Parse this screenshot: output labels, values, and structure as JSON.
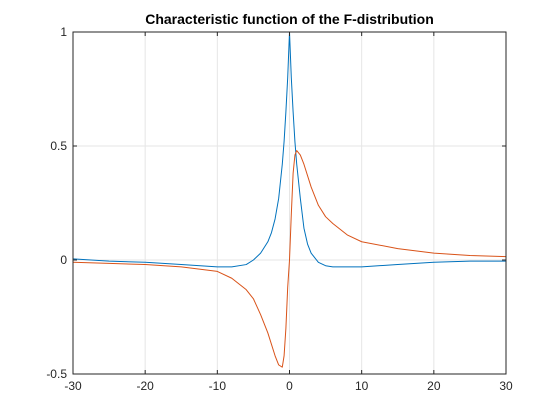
{
  "chart_data": {
    "type": "line",
    "title": "Characteristic function of the F-distribution",
    "xlabel": "",
    "ylabel": "",
    "xlim": [
      -30,
      30
    ],
    "ylim": [
      -0.5,
      1
    ],
    "xticks": [
      -30,
      -20,
      -10,
      0,
      10,
      20,
      30
    ],
    "xtick_labels": [
      "-30",
      "-20",
      "-10",
      "0",
      "10",
      "20",
      "30"
    ],
    "yticks": [
      -0.5,
      0,
      0.5,
      1
    ],
    "ytick_labels": [
      "-0.5",
      "0",
      "0.5",
      "1"
    ],
    "grid": true,
    "legend": "none",
    "series": [
      {
        "color": "#0072BD",
        "x": [
          -30,
          -25,
          -20,
          -15,
          -10,
          -8,
          -6,
          -5,
          -4,
          -3,
          -2.5,
          -2,
          -1.5,
          -1,
          -0.75,
          -0.5,
          -0.25,
          0,
          0.25,
          0.5,
          0.75,
          1,
          1.5,
          2,
          2.5,
          3,
          4,
          5,
          6,
          8,
          10,
          15,
          20,
          25,
          30
        ],
        "y": [
          0.005,
          -0.005,
          -0.01,
          -0.02,
          -0.03,
          -0.03,
          -0.02,
          0.0,
          0.03,
          0.08,
          0.12,
          0.18,
          0.27,
          0.42,
          0.52,
          0.65,
          0.8,
          1.0,
          0.8,
          0.65,
          0.52,
          0.42,
          0.27,
          0.14,
          0.07,
          0.03,
          -0.01,
          -0.025,
          -0.03,
          -0.03,
          -0.03,
          -0.02,
          -0.01,
          -0.005,
          -0.005
        ]
      },
      {
        "color": "#D95319",
        "x": [
          -30,
          -25,
          -20,
          -15,
          -10,
          -8,
          -6,
          -5,
          -4,
          -3,
          -2,
          -1.5,
          -1,
          -0.75,
          -0.5,
          -0.25,
          0,
          0.25,
          0.5,
          0.75,
          1,
          1.5,
          2,
          3,
          4,
          5,
          6,
          8,
          10,
          15,
          20,
          25,
          30
        ],
        "y": [
          -0.01,
          -0.015,
          -0.02,
          -0.03,
          -0.05,
          -0.08,
          -0.13,
          -0.17,
          -0.24,
          -0.32,
          -0.42,
          -0.46,
          -0.47,
          -0.42,
          -0.3,
          -0.12,
          0.0,
          0.2,
          0.38,
          0.46,
          0.48,
          0.46,
          0.42,
          0.32,
          0.24,
          0.19,
          0.16,
          0.11,
          0.08,
          0.05,
          0.03,
          0.02,
          0.015
        ]
      }
    ]
  }
}
